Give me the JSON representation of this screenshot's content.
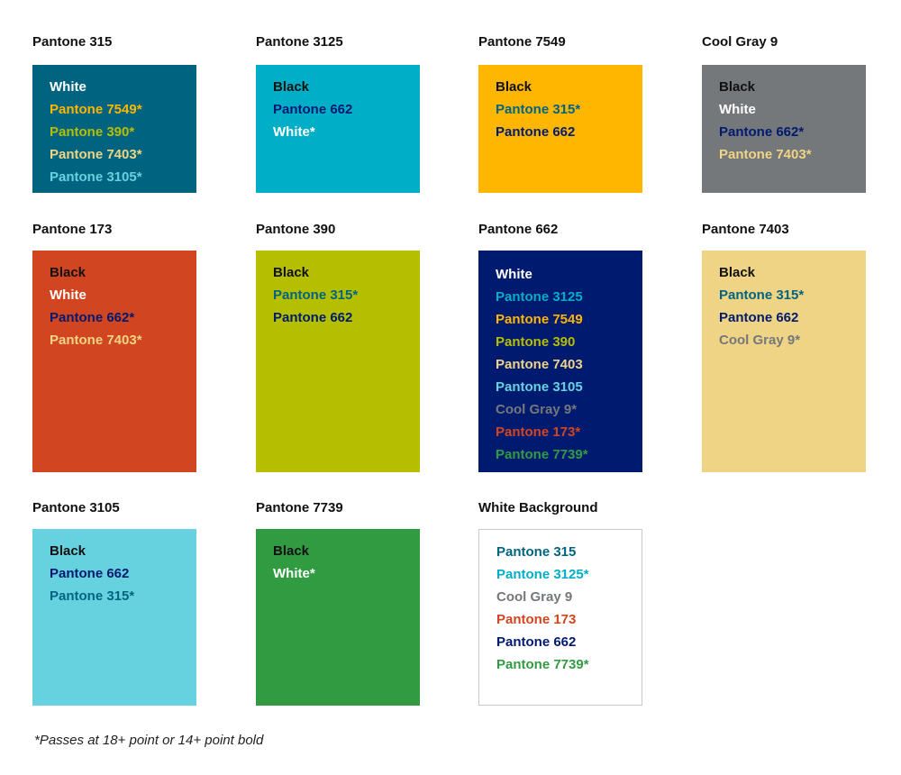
{
  "cards": [
    {
      "title": "Pantone 315",
      "background": "#006480",
      "lines": [
        {
          "text": "White",
          "color": "#ffffff"
        },
        {
          "text": "Pantone 7549*",
          "color": "#ffb600"
        },
        {
          "text": "Pantone 390*",
          "color": "#b5bf00"
        },
        {
          "text": "Pantone 7403*",
          "color": "#eed484"
        },
        {
          "text": "Pantone 3105*",
          "color": "#67d2df"
        }
      ]
    },
    {
      "title": "Pantone 3125",
      "background": "#00aec7",
      "lines": [
        {
          "text": "Black",
          "color": "#111111"
        },
        {
          "text": "Pantone 662",
          "color": "#001a70"
        },
        {
          "text": "White*",
          "color": "#ffffff"
        }
      ]
    },
    {
      "title": "Pantone 7549",
      "background": "#ffb600",
      "lines": [
        {
          "text": "Black",
          "color": "#111111"
        },
        {
          "text": "Pantone 315*",
          "color": "#006480"
        },
        {
          "text": "Pantone 662",
          "color": "#001a70"
        }
      ]
    },
    {
      "title": "Cool Gray 9",
      "background": "#75787b",
      "lines": [
        {
          "text": "Black",
          "color": "#111111"
        },
        {
          "text": "White",
          "color": "#ffffff"
        },
        {
          "text": "Pantone 662*",
          "color": "#001a70"
        },
        {
          "text": "Pantone 7403*",
          "color": "#eed484"
        }
      ]
    },
    {
      "title": "Pantone 173",
      "background": "#d14520",
      "lines": [
        {
          "text": "Black",
          "color": "#111111"
        },
        {
          "text": "White",
          "color": "#ffffff"
        },
        {
          "text": "Pantone 662*",
          "color": "#001a70"
        },
        {
          "text": "Pantone 7403*",
          "color": "#eed484"
        }
      ]
    },
    {
      "title": "Pantone 390",
      "background": "#b5bf00",
      "lines": [
        {
          "text": "Black",
          "color": "#111111"
        },
        {
          "text": "Pantone 315*",
          "color": "#006480"
        },
        {
          "text": "Pantone 662",
          "color": "#001a70"
        }
      ]
    },
    {
      "title": "Pantone 662",
      "background": "#001a70",
      "lines": [
        {
          "text": "White",
          "color": "#ffffff"
        },
        {
          "text": "Pantone 3125",
          "color": "#00aec7"
        },
        {
          "text": "Pantone 7549",
          "color": "#ffb600"
        },
        {
          "text": "Pantone 390",
          "color": "#b5bf00"
        },
        {
          "text": "Pantone 7403",
          "color": "#eed484"
        },
        {
          "text": "Pantone 3105",
          "color": "#67d2df"
        },
        {
          "text": "Cool Gray 9*",
          "color": "#75787b"
        },
        {
          "text": "Pantone 173*",
          "color": "#d14520"
        },
        {
          "text": "Pantone 7739*",
          "color": "#319b42"
        }
      ]
    },
    {
      "title": "Pantone 7403",
      "background": "#eed484",
      "lines": [
        {
          "text": "Black",
          "color": "#111111"
        },
        {
          "text": "Pantone 315*",
          "color": "#006480"
        },
        {
          "text": "Pantone 662",
          "color": "#001a70"
        },
        {
          "text": "Cool Gray 9*",
          "color": "#75787b"
        }
      ]
    },
    {
      "title": "Pantone 3105",
      "background": "#67d2df",
      "lines": [
        {
          "text": "Black",
          "color": "#111111"
        },
        {
          "text": "Pantone 662",
          "color": "#001a70"
        },
        {
          "text": "Pantone 315*",
          "color": "#006480"
        }
      ]
    },
    {
      "title": "Pantone 7739",
      "background": "#319b42",
      "lines": [
        {
          "text": "Black",
          "color": "#111111"
        },
        {
          "text": "White*",
          "color": "#ffffff"
        }
      ]
    },
    {
      "title": "White Background",
      "background": "#ffffff",
      "bordered": true,
      "lines": [
        {
          "text": "Pantone 315",
          "color": "#006480"
        },
        {
          "text": "Pantone 3125*",
          "color": "#00aec7"
        },
        {
          "text": "Cool Gray 9",
          "color": "#75787b"
        },
        {
          "text": "Pantone 173",
          "color": "#d14520"
        },
        {
          "text": "Pantone 662",
          "color": "#001a70"
        },
        {
          "text": "Pantone 7739*",
          "color": "#319b42"
        }
      ]
    }
  ],
  "footnote": "*Passes at 18+ point or 14+ point bold"
}
